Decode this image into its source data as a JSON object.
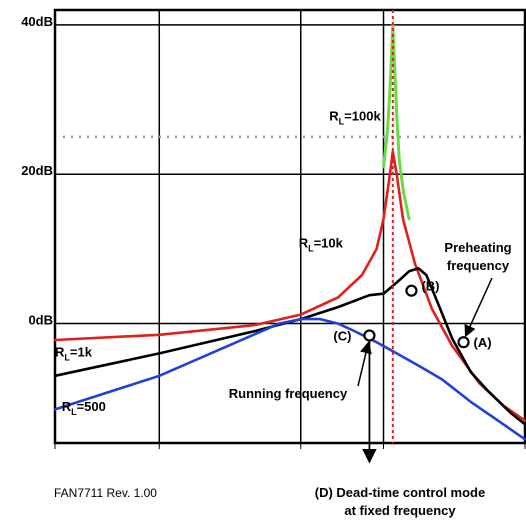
{
  "chart_data": {
    "type": "line",
    "x_scale": "log",
    "xlim": [
      0.3,
      3.0
    ],
    "ylim": [
      -16,
      42
    ],
    "grid": true,
    "y_ticks": [
      {
        "value": 40,
        "label": "40dB"
      },
      {
        "value": 20,
        "label": "20dB"
      },
      {
        "value": 0,
        "label": "0dB"
      }
    ],
    "x_gridlines": [
      0.3,
      0.5,
      1.0,
      1.5,
      3.0
    ],
    "reference_line_db": 25,
    "resonant_frequency": 1.57,
    "series": [
      {
        "name": "R_L=100k",
        "color": "#66dd44",
        "x": [
          1.5,
          1.53,
          1.55,
          1.565,
          1.57,
          1.58,
          1.6,
          1.62,
          1.65,
          1.7
        ],
        "y": [
          21.0,
          26.0,
          32.0,
          38.0,
          40.0,
          36.0,
          28.0,
          22.0,
          18.0,
          14.0
        ]
      },
      {
        "name": "R_L=10k",
        "color": "#e0201c",
        "x": [
          0.3,
          0.5,
          0.8,
          1.0,
          1.2,
          1.35,
          1.45,
          1.5,
          1.54,
          1.57,
          1.6,
          1.65,
          1.75,
          1.9,
          2.1,
          2.4,
          2.7,
          3.0
        ],
        "y": [
          -2.2,
          -1.5,
          -0.2,
          1.2,
          3.5,
          6.5,
          10.0,
          14.0,
          19.0,
          23.0,
          20.0,
          14.0,
          8.0,
          2.0,
          -3.0,
          -8.0,
          -11.0,
          -13.0
        ]
      },
      {
        "name": "R_L=1k",
        "color": "#000000",
        "x": [
          0.3,
          0.5,
          0.8,
          1.0,
          1.2,
          1.4,
          1.5,
          1.6,
          1.7,
          1.78,
          1.85,
          1.95,
          2.1,
          2.3,
          2.5,
          2.8,
          3.0
        ],
        "y": [
          -7.0,
          -4.0,
          -1.0,
          0.6,
          2.2,
          3.8,
          4.0,
          5.5,
          7.0,
          7.4,
          6.5,
          3.0,
          -2.0,
          -6.5,
          -9.0,
          -12.0,
          -13.5
        ]
      },
      {
        "name": "R_L=500",
        "color": "#2040d8",
        "x": [
          0.3,
          0.5,
          0.7,
          0.9,
          1.0,
          1.1,
          1.2,
          1.3,
          1.45,
          1.6,
          1.8,
          2.0,
          2.3,
          2.6,
          3.0
        ],
        "y": [
          -11.5,
          -7.0,
          -3.0,
          0.0,
          0.6,
          0.6,
          0.0,
          -1.0,
          -2.5,
          -4.0,
          -5.8,
          -7.5,
          -10.5,
          -12.8,
          -15.5
        ]
      }
    ],
    "curve_labels": [
      {
        "main": "R",
        "sub": "L",
        "rest": "=100k",
        "x": 1.15,
        "y": 27.2
      },
      {
        "main": "R",
        "sub": "L",
        "rest": "=10k",
        "x": 0.99,
        "y": 10.2
      },
      {
        "main": "R",
        "sub": "L",
        "rest": "=1k",
        "x": 0.3,
        "y": -4.4
      },
      {
        "main": "R",
        "sub": "L",
        "rest": "=500",
        "x": 0.31,
        "y": -11.7
      }
    ],
    "points": [
      {
        "label": "(A)",
        "x": 2.22,
        "y": -2.5,
        "label_dx": 4,
        "label_dy": 5
      },
      {
        "label": "(B)",
        "x": 1.72,
        "y": 4.4,
        "label_dx": 4,
        "label_dy": 0
      },
      {
        "label": "(C)",
        "x": 1.4,
        "y": -1.6,
        "label_dx": -42,
        "label_dy": 5
      }
    ],
    "annotations": {
      "preheating_line1": "Preheating",
      "preheating_line2": "frequency",
      "running": "Running frequency",
      "deadtime_line1": "(D) Dead-time control mode",
      "deadtime_line2": "at fixed frequency"
    },
    "revision_note": "FAN7711 Rev. 1.00"
  }
}
